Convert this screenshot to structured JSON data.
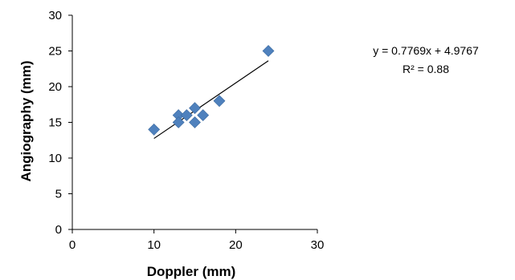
{
  "chart_data": {
    "type": "scatter",
    "xlabel": "Doppler (mm)",
    "ylabel": "Angiography (mm)",
    "xlim": [
      0,
      30
    ],
    "ylim": [
      0,
      30
    ],
    "xticks": [
      "0",
      "10",
      "20",
      "30"
    ],
    "yticks": [
      "0",
      "5",
      "10",
      "15",
      "20",
      "25",
      "30"
    ],
    "grid": false,
    "marker_color": "#4f81bd",
    "series": [
      {
        "points": [
          {
            "x": 10,
            "y": 14
          },
          {
            "x": 13,
            "y": 16
          },
          {
            "x": 13,
            "y": 15
          },
          {
            "x": 14,
            "y": 16
          },
          {
            "x": 15,
            "y": 17
          },
          {
            "x": 15,
            "y": 15
          },
          {
            "x": 16,
            "y": 16
          },
          {
            "x": 18,
            "y": 18
          },
          {
            "x": 24,
            "y": 25
          }
        ]
      }
    ],
    "trendline": {
      "slope": 0.7769,
      "intercept": 4.9767,
      "x_range": [
        10,
        24
      ],
      "equation": "y = 0.7769x + 4.9767",
      "r2_label": "R² = 0.88"
    }
  }
}
